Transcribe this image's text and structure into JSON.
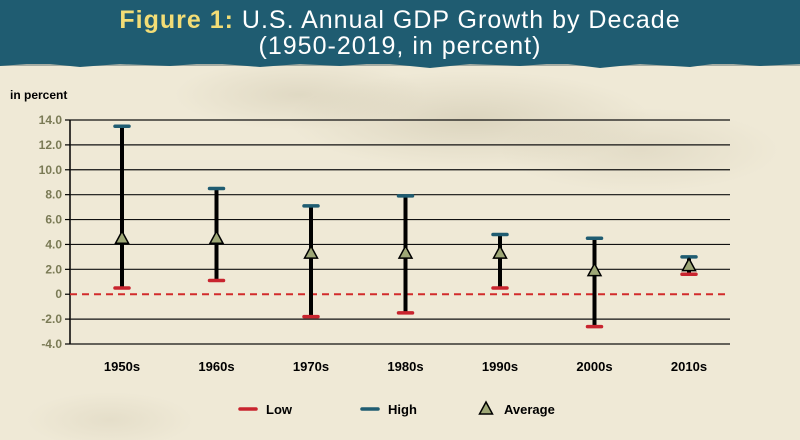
{
  "title": {
    "figure_label": "Figure 1:",
    "line1": "U.S. Annual GDP Growth by Decade",
    "line2": "(1950-2019, in percent)"
  },
  "colors": {
    "banner": "#1f5c71",
    "figure_label": "#f2dd76",
    "low": "#c8242e",
    "high": "#1f5c71",
    "stem": "#000000",
    "average_marker": "#9ea776",
    "zero_line": "#d22b2b",
    "tick_text": "#7a7a55"
  },
  "chart_data": {
    "type": "range",
    "title": "Figure 1: U.S. Annual GDP Growth by Decade (1950-2019, in percent)",
    "ylabel": "in percent",
    "ylim": [
      -4.0,
      14.0
    ],
    "yticks": [
      "14.0",
      "12.0",
      "10.0",
      "8.0",
      "6.0",
      "4.0",
      "2.0",
      "0",
      "-2.0",
      "-4.0"
    ],
    "ytick_values": [
      14,
      12,
      10,
      8,
      6,
      4,
      2,
      0,
      -2,
      -4
    ],
    "grid": true,
    "zero_line": "dashed",
    "categories": [
      "1950s",
      "1960s",
      "1970s",
      "1980s",
      "1990s",
      "2000s",
      "2010s"
    ],
    "series": [
      {
        "name": "Low",
        "values": [
          0.5,
          1.1,
          -1.8,
          -1.5,
          0.5,
          -2.6,
          1.6
        ]
      },
      {
        "name": "High",
        "values": [
          13.5,
          8.5,
          7.1,
          7.9,
          4.8,
          4.5,
          3.0
        ]
      },
      {
        "name": "Average",
        "values": [
          4.5,
          4.5,
          3.3,
          3.3,
          3.3,
          1.9,
          2.3
        ]
      }
    ],
    "legend": {
      "position": "bottom",
      "items": [
        {
          "label": "Low",
          "symbol": "line"
        },
        {
          "label": "High",
          "symbol": "line"
        },
        {
          "label": "Average",
          "symbol": "triangle"
        }
      ]
    }
  }
}
